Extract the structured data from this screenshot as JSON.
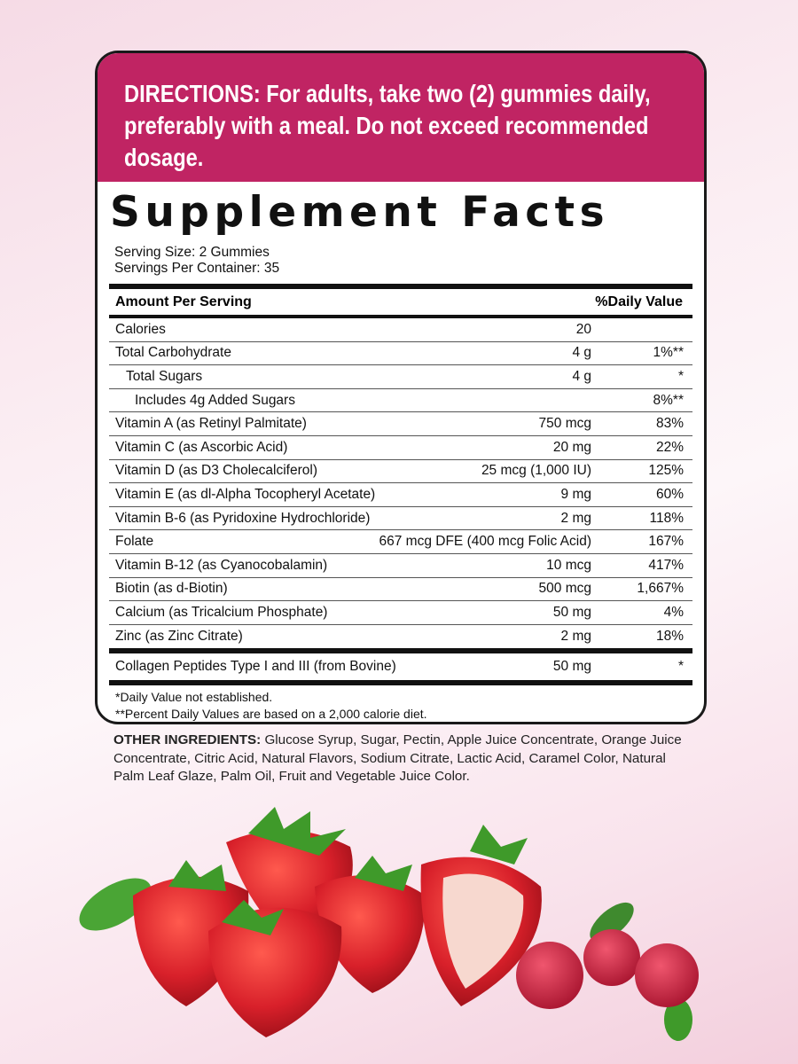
{
  "directions": {
    "lines": [
      "DIRECTIONS: For adults, take two (2) gummies daily,",
      "preferably with a meal. Do not exceed recommended",
      "dosage."
    ]
  },
  "facts": {
    "title": "Supplement Facts",
    "serving_size": "Serving Size: 2 Gummies",
    "servings_per_container": "Servings Per Container: 35",
    "header_amount": "Amount Per Serving",
    "header_dv": "%Daily Value",
    "rows": [
      {
        "name": "Calories",
        "amount": "20",
        "dv": ""
      },
      {
        "name": "Total Carbohydrate",
        "amount": "4 g",
        "dv": "1%**"
      },
      {
        "name": "Total Sugars",
        "amount": "4 g",
        "dv": "*"
      },
      {
        "name": "Includes 4g Added Sugars",
        "amount": "",
        "dv": "8%**"
      },
      {
        "name": "Vitamin A (as Retinyl Palmitate)",
        "amount": "750 mcg",
        "dv": "83%"
      },
      {
        "name": "Vitamin C (as Ascorbic Acid)",
        "amount": "20 mg",
        "dv": "22%"
      },
      {
        "name": "Vitamin D (as D3 Cholecalciferol)",
        "amount": "25 mcg (1,000 IU)",
        "dv": "125%"
      },
      {
        "name": "Vitamin E (as dl-Alpha Tocopheryl Acetate)",
        "amount": "9 mg",
        "dv": "60%"
      },
      {
        "name": "Vitamin B-6 (as Pyridoxine Hydrochloride)",
        "amount": "2 mg",
        "dv": "118%"
      },
      {
        "name": "Folate",
        "amount": "667 mcg DFE (400 mcg Folic Acid)",
        "dv": "167%"
      },
      {
        "name": "Vitamin B-12 (as Cyanocobalamin)",
        "amount": "10 mcg",
        "dv": "417%"
      },
      {
        "name": "Biotin (as d-Biotin)",
        "amount": "500 mcg",
        "dv": "1,667%"
      },
      {
        "name": "Calcium (as Tricalcium Phosphate)",
        "amount": "50 mg",
        "dv": "4%"
      },
      {
        "name": "Zinc (as Zinc Citrate)",
        "amount": "2 mg",
        "dv": "18%"
      }
    ],
    "collagen": {
      "name": "Collagen Peptides Type I and III (from Bovine)",
      "amount": "50 mg",
      "dv": "*"
    },
    "footnote1": "*Daily Value not established.",
    "footnote2": "**Percent Daily Values are based on a 2,000 calorie diet."
  },
  "other_ingredients": {
    "label": "OTHER INGREDIENTS:",
    "text": " Glucose Syrup, Sugar, Pectin, Apple Juice Concentrate, Orange Juice Concentrate, Citric Acid, Natural Flavors, Sodium Citrate, Lactic Acid, Caramel Color, Natural Palm Leaf Glaze, Palm Oil, Fruit and Vegetable Juice Color."
  },
  "colors": {
    "accent": "#c02463",
    "strawberry": "#d8202a",
    "leaf": "#3f9a2a"
  }
}
